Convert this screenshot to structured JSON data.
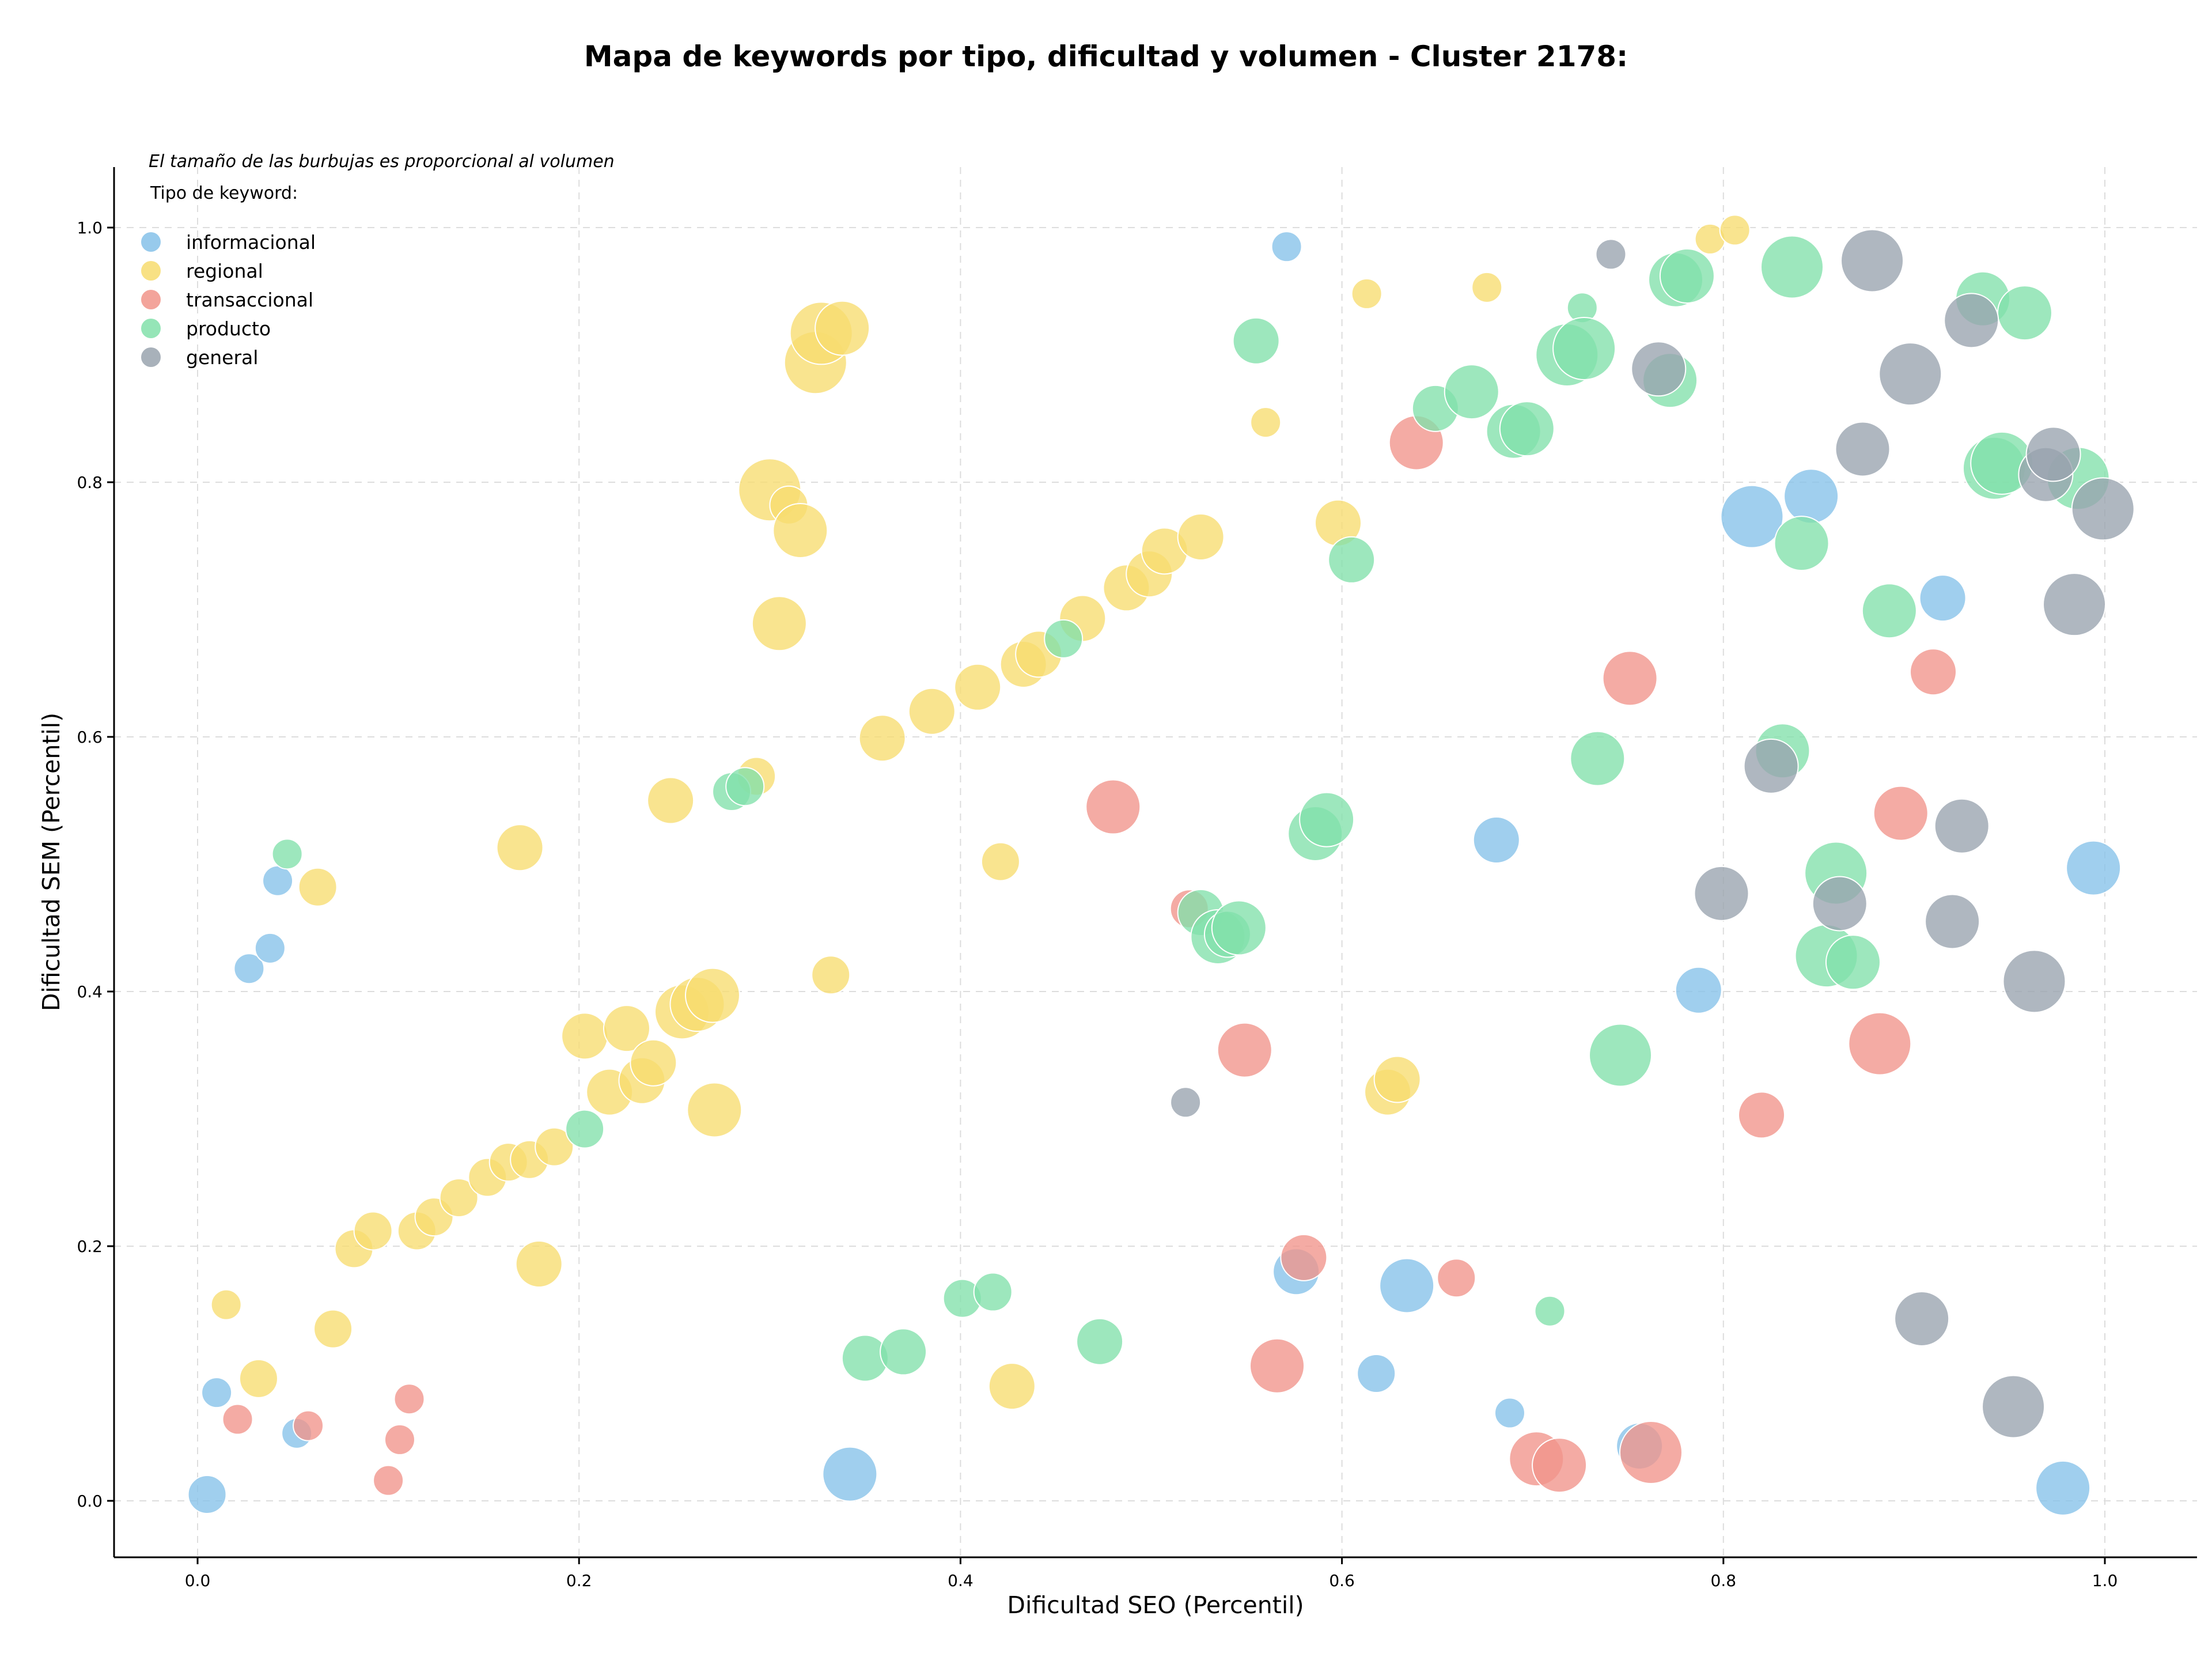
{
  "chart_data": {
    "type": "scatter",
    "title": "Mapa de keywords por tipo, dificultad y volumen - Cluster 2178:",
    "xlabel": "Dificultad SEO (Percentil)",
    "ylabel": "Dificultad SEM (Percentil)",
    "xlim": [
      -0.045,
      1.05
    ],
    "ylim": [
      -0.045,
      1.05
    ],
    "x_ticks": [
      "0.0",
      "0.2",
      "0.4",
      "0.6",
      "0.8",
      "1.0"
    ],
    "y_ticks": [
      "0.0",
      "0.2",
      "0.4",
      "0.6",
      "0.8",
      "1.0"
    ],
    "grid": true,
    "note": "El tamaño de las burbujas es proporcional al volumen",
    "legend_title": "Tipo de keyword:",
    "legend_position": "top-left",
    "series": [
      {
        "name": "informacional",
        "color": "#85c1e9",
        "points": [
          [
            0.005,
            0.005,
            3
          ],
          [
            0.01,
            0.085,
            2
          ],
          [
            0.027,
            0.418,
            2
          ],
          [
            0.038,
            0.434,
            2
          ],
          [
            0.042,
            0.487,
            2
          ],
          [
            0.052,
            0.053,
            2
          ],
          [
            0.342,
            0.021,
            5
          ],
          [
            0.571,
            0.985,
            2
          ],
          [
            0.576,
            0.18,
            4
          ],
          [
            0.618,
            0.1,
            3
          ],
          [
            0.634,
            0.169,
            5
          ],
          [
            0.681,
            0.519,
            4
          ],
          [
            0.688,
            0.069,
            2
          ],
          [
            0.756,
            0.043,
            4
          ],
          [
            0.787,
            0.401,
            4
          ],
          [
            0.815,
            0.773,
            6
          ],
          [
            0.846,
            0.789,
            5
          ],
          [
            0.915,
            0.709,
            4
          ],
          [
            0.978,
            0.01,
            5
          ],
          [
            0.994,
            0.497,
            5
          ]
        ]
      },
      {
        "name": "regional",
        "color": "#f7dc6f",
        "points": [
          [
            0.015,
            0.154,
            2
          ],
          [
            0.032,
            0.096,
            3
          ],
          [
            0.063,
            0.482,
            3
          ],
          [
            0.071,
            0.135,
            3
          ],
          [
            0.082,
            0.198,
            3
          ],
          [
            0.092,
            0.212,
            3
          ],
          [
            0.115,
            0.212,
            3
          ],
          [
            0.124,
            0.223,
            3
          ],
          [
            0.137,
            0.238,
            3
          ],
          [
            0.152,
            0.254,
            3
          ],
          [
            0.163,
            0.266,
            3
          ],
          [
            0.174,
            0.268,
            3
          ],
          [
            0.179,
            0.186,
            4
          ],
          [
            0.187,
            0.278,
            3
          ],
          [
            0.169,
            0.513,
            4
          ],
          [
            0.203,
            0.365,
            4
          ],
          [
            0.216,
            0.321,
            4
          ],
          [
            0.225,
            0.371,
            4
          ],
          [
            0.233,
            0.33,
            4
          ],
          [
            0.239,
            0.344,
            4
          ],
          [
            0.248,
            0.55,
            4
          ],
          [
            0.254,
            0.384,
            5
          ],
          [
            0.262,
            0.39,
            5
          ],
          [
            0.27,
            0.397,
            5
          ],
          [
            0.271,
            0.307,
            5
          ],
          [
            0.293,
            0.569,
            3
          ],
          [
            0.3,
            0.794,
            6
          ],
          [
            0.305,
            0.689,
            5
          ],
          [
            0.31,
            0.782,
            3
          ],
          [
            0.316,
            0.762,
            5
          ],
          [
            0.324,
            0.894,
            6
          ],
          [
            0.327,
            0.917,
            6
          ],
          [
            0.338,
            0.921,
            5
          ],
          [
            0.332,
            0.413,
            3
          ],
          [
            0.359,
            0.599,
            4
          ],
          [
            0.385,
            0.62,
            4
          ],
          [
            0.409,
            0.639,
            4
          ],
          [
            0.421,
            0.502,
            3
          ],
          [
            0.427,
            0.09,
            4
          ],
          [
            0.433,
            0.657,
            4
          ],
          [
            0.441,
            0.665,
            4
          ],
          [
            0.464,
            0.693,
            4
          ],
          [
            0.487,
            0.717,
            4
          ],
          [
            0.499,
            0.728,
            4
          ],
          [
            0.507,
            0.746,
            4
          ],
          [
            0.526,
            0.757,
            4
          ],
          [
            0.56,
            0.847,
            2
          ],
          [
            0.598,
            0.768,
            4
          ],
          [
            0.613,
            0.948,
            2
          ],
          [
            0.624,
            0.321,
            4
          ],
          [
            0.629,
            0.331,
            4
          ],
          [
            0.676,
            0.953,
            2
          ],
          [
            0.793,
            0.991,
            2
          ],
          [
            0.806,
            0.998,
            2
          ]
        ]
      },
      {
        "name": "transaccional",
        "color": "#f1948a",
        "points": [
          [
            0.021,
            0.064,
            2
          ],
          [
            0.058,
            0.059,
            2
          ],
          [
            0.1,
            0.016,
            2
          ],
          [
            0.106,
            0.048,
            2
          ],
          [
            0.111,
            0.08,
            2
          ],
          [
            0.48,
            0.545,
            5
          ],
          [
            0.52,
            0.465,
            3
          ],
          [
            0.549,
            0.354,
            5
          ],
          [
            0.566,
            0.106,
            5
          ],
          [
            0.58,
            0.191,
            4
          ],
          [
            0.639,
            0.831,
            5
          ],
          [
            0.66,
            0.175,
            3
          ],
          [
            0.702,
            0.033,
            5
          ],
          [
            0.714,
            0.028,
            5
          ],
          [
            0.751,
            0.646,
            5
          ],
          [
            0.762,
            0.038,
            6
          ],
          [
            0.82,
            0.303,
            4
          ],
          [
            0.882,
            0.359,
            6
          ],
          [
            0.893,
            0.54,
            5
          ],
          [
            0.91,
            0.651,
            4
          ]
        ]
      },
      {
        "name": "producto",
        "color": "#82e0aa",
        "points": [
          [
            0.047,
            0.508,
            2
          ],
          [
            0.203,
            0.292,
            3
          ],
          [
            0.28,
            0.557,
            3
          ],
          [
            0.287,
            0.561,
            3
          ],
          [
            0.35,
            0.112,
            4
          ],
          [
            0.37,
            0.117,
            4
          ],
          [
            0.401,
            0.159,
            3
          ],
          [
            0.417,
            0.164,
            3
          ],
          [
            0.454,
            0.677,
            3
          ],
          [
            0.473,
            0.125,
            4
          ],
          [
            0.526,
            0.462,
            4
          ],
          [
            0.535,
            0.443,
            5
          ],
          [
            0.54,
            0.445,
            4
          ],
          [
            0.546,
            0.45,
            5
          ],
          [
            0.555,
            0.911,
            4
          ],
          [
            0.586,
            0.524,
            5
          ],
          [
            0.592,
            0.535,
            5
          ],
          [
            0.605,
            0.739,
            4
          ],
          [
            0.649,
            0.858,
            4
          ],
          [
            0.668,
            0.871,
            5
          ],
          [
            0.69,
            0.84,
            5
          ],
          [
            0.697,
            0.842,
            5
          ],
          [
            0.709,
            0.149,
            2
          ],
          [
            0.718,
            0.9,
            6
          ],
          [
            0.726,
            0.937,
            2
          ],
          [
            0.727,
            0.905,
            6
          ],
          [
            0.734,
            0.583,
            5
          ],
          [
            0.746,
            0.35,
            6
          ],
          [
            0.772,
            0.88,
            5
          ],
          [
            0.775,
            0.959,
            5
          ],
          [
            0.781,
            0.962,
            5
          ],
          [
            0.831,
            0.589,
            5
          ],
          [
            0.836,
            0.969,
            6
          ],
          [
            0.841,
            0.752,
            5
          ],
          [
            0.854,
            0.428,
            6
          ],
          [
            0.859,
            0.493,
            6
          ],
          [
            0.868,
            0.423,
            5
          ],
          [
            0.887,
            0.699,
            5
          ],
          [
            0.936,
            0.944,
            5
          ],
          [
            0.942,
            0.811,
            6
          ],
          [
            0.946,
            0.815,
            6
          ],
          [
            0.958,
            0.933,
            5
          ],
          [
            0.986,
            0.803,
            6
          ]
        ]
      },
      {
        "name": "general",
        "color": "#99a3ae",
        "points": [
          [
            0.518,
            0.313,
            2
          ],
          [
            0.741,
            0.979,
            2
          ],
          [
            0.766,
            0.889,
            5
          ],
          [
            0.799,
            0.477,
            5
          ],
          [
            0.825,
            0.577,
            5
          ],
          [
            0.861,
            0.469,
            5
          ],
          [
            0.873,
            0.826,
            5
          ],
          [
            0.878,
            0.974,
            6
          ],
          [
            0.898,
            0.885,
            6
          ],
          [
            0.904,
            0.143,
            5
          ],
          [
            0.92,
            0.455,
            5
          ],
          [
            0.925,
            0.53,
            5
          ],
          [
            0.93,
            0.927,
            5
          ],
          [
            0.952,
            0.074,
            6
          ],
          [
            0.963,
            0.408,
            6
          ],
          [
            0.969,
            0.806,
            5
          ],
          [
            0.973,
            0.822,
            5
          ],
          [
            0.984,
            0.704,
            6
          ],
          [
            0.999,
            0.779,
            6
          ]
        ]
      }
    ]
  }
}
